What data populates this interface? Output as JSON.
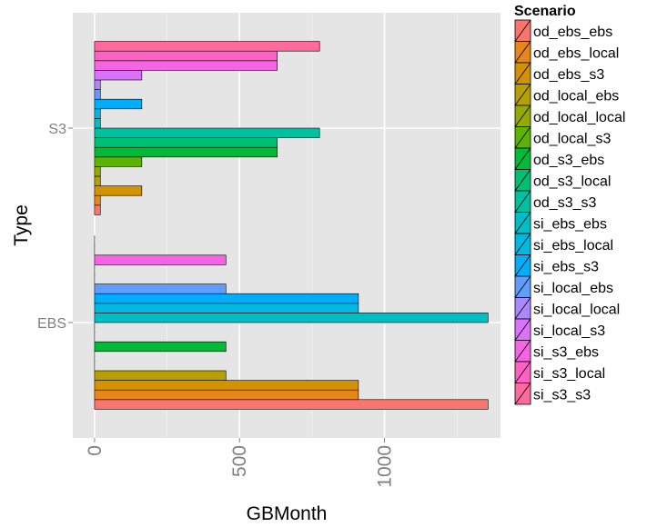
{
  "chart_data": {
    "type": "bar",
    "orientation": "horizontal",
    "xlabel": "GBMonth",
    "ylabel": "Type",
    "xlim": [
      -75,
      1400
    ],
    "x_ticks": [
      0,
      500,
      1000
    ],
    "x_tick_labels": [
      "0",
      "500",
      "1000"
    ],
    "categories": [
      "EBS",
      "S3"
    ],
    "legend_title": "Scenario",
    "legend_placement": "right",
    "grid": true,
    "series": [
      {
        "name": "od_ebs_ebs",
        "color": "#F8766D",
        "values": [
          1357,
          20
        ]
      },
      {
        "name": "od_ebs_local",
        "color": "#E7861B",
        "values": [
          910,
          20
        ]
      },
      {
        "name": "od_ebs_s3",
        "color": "#D39200",
        "values": [
          910,
          163
        ]
      },
      {
        "name": "od_local_ebs",
        "color": "#B79F00",
        "values": [
          453,
          20
        ]
      },
      {
        "name": "od_local_local",
        "color": "#93AA00",
        "values": [
          0,
          20
        ]
      },
      {
        "name": "od_local_s3",
        "color": "#5EB300",
        "values": [
          0,
          163
        ]
      },
      {
        "name": "od_s3_ebs",
        "color": "#00BA38",
        "values": [
          453,
          630
        ]
      },
      {
        "name": "od_s3_local",
        "color": "#00BF74",
        "values": [
          0,
          630
        ]
      },
      {
        "name": "od_s3_s3",
        "color": "#00C19F",
        "values": [
          0,
          776
        ]
      },
      {
        "name": "si_ebs_ebs",
        "color": "#00BFC4",
        "values": [
          1357,
          20
        ]
      },
      {
        "name": "si_ebs_local",
        "color": "#00B9E3",
        "values": [
          910,
          20
        ]
      },
      {
        "name": "si_ebs_s3",
        "color": "#00ADFA",
        "values": [
          910,
          163
        ]
      },
      {
        "name": "si_local_ebs",
        "color": "#619CFF",
        "values": [
          453,
          20
        ]
      },
      {
        "name": "si_local_local",
        "color": "#AE87FF",
        "values": [
          0,
          20
        ]
      },
      {
        "name": "si_local_s3",
        "color": "#DB72FB",
        "values": [
          0,
          163
        ]
      },
      {
        "name": "si_s3_ebs",
        "color": "#F564E3",
        "values": [
          453,
          630
        ]
      },
      {
        "name": "si_s3_local",
        "color": "#FF61C3",
        "values": [
          0,
          630
        ]
      },
      {
        "name": "si_s3_s3",
        "color": "#FF699C",
        "values": [
          0,
          776
        ]
      }
    ]
  }
}
